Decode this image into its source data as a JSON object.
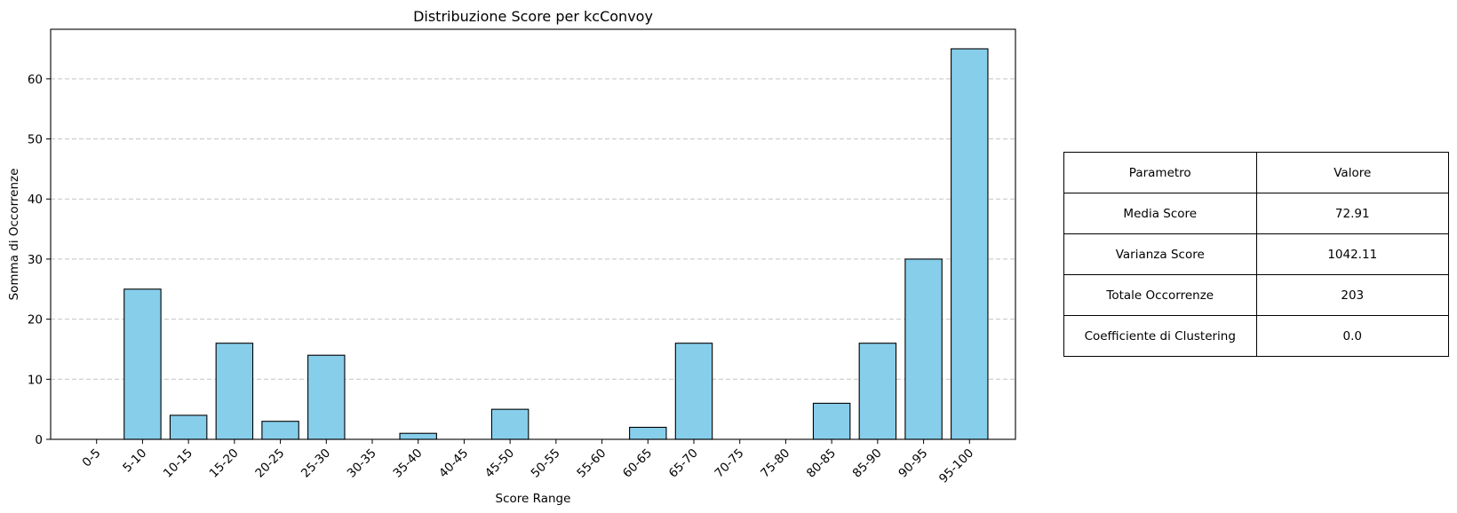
{
  "chart_data": {
    "type": "bar",
    "title": "Distribuzione Score per kcConvoy",
    "xlabel": "Score Range",
    "ylabel": "Somma di Occorrenze",
    "categories": [
      "0-5",
      "5-10",
      "10-15",
      "15-20",
      "20-25",
      "25-30",
      "30-35",
      "35-40",
      "40-45",
      "45-50",
      "50-55",
      "55-60",
      "60-65",
      "65-70",
      "70-75",
      "75-80",
      "80-85",
      "85-90",
      "90-95",
      "95-100"
    ],
    "values": [
      0,
      25,
      4,
      16,
      3,
      14,
      0,
      1,
      0,
      5,
      0,
      0,
      2,
      16,
      0,
      0,
      6,
      16,
      30,
      65
    ],
    "ylim": [
      0,
      68.25
    ],
    "yticks": [
      0,
      10,
      20,
      30,
      40,
      50,
      60
    ],
    "grid": "y-dashed",
    "bar_color": "#87ceeb",
    "edge_color": "#000000"
  },
  "table": {
    "rows": [
      [
        "Parametro",
        "Valore"
      ],
      [
        "Media Score",
        "72.91"
      ],
      [
        "Varianza Score",
        "1042.11"
      ],
      [
        "Totale Occorrenze",
        "203"
      ],
      [
        "Coefficiente di Clustering",
        "0.0"
      ]
    ]
  }
}
